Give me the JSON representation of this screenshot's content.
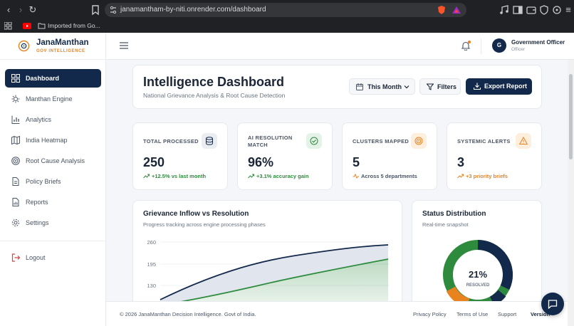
{
  "browser": {
    "url": "janamantham-by-niti.onrender.com/dashboard",
    "bookmark": "Imported from Go..."
  },
  "brand": {
    "name": "JanaManthan",
    "tagline": "GOV INTELLIGENCE"
  },
  "sidebar": {
    "items": [
      {
        "label": "Dashboard",
        "icon": "dashboard-icon",
        "active": true
      },
      {
        "label": "Manthan Engine",
        "icon": "engine-icon"
      },
      {
        "label": "Analytics",
        "icon": "analytics-icon"
      },
      {
        "label": "India Heatmap",
        "icon": "map-icon"
      },
      {
        "label": "Root Cause Analysis",
        "icon": "target-icon"
      },
      {
        "label": "Policy Briefs",
        "icon": "document-icon"
      },
      {
        "label": "Reports",
        "icon": "report-icon"
      },
      {
        "label": "Settings",
        "icon": "gear-icon"
      }
    ],
    "logout": "Logout"
  },
  "header": {
    "avatar_initial": "G",
    "user_name": "Government Officer",
    "user_role": "Officer"
  },
  "dashboard": {
    "title": "Intelligence Dashboard",
    "subtitle": "National Grievance Analysis & Root Cause Detection",
    "period": "This Month",
    "filters": "Filters",
    "export": "Export Report"
  },
  "stats": [
    {
      "label": "TOTAL PROCESSED",
      "value": "250",
      "trend": "+12.5% vs last month",
      "color": "#2e8b3e"
    },
    {
      "label_1": "AI RESOLUTION",
      "label_2": "MATCH",
      "value": "96%",
      "trend": "+3.1% accuracy gain",
      "color": "#2e8b3e"
    },
    {
      "label": "CLUSTERS MAPPED",
      "value": "5",
      "trend": "Across 5 departments",
      "color": "#4a5566"
    },
    {
      "label": "SYSTEMIC ALERTS",
      "value": "3",
      "trend": "+3 priority briefs",
      "color": "#e8831f"
    }
  ],
  "inflow_chart": {
    "title": "Grievance Inflow vs Resolution",
    "subtitle": "Progress tracking across engine processing phases",
    "yticks": [
      "260",
      "195",
      "130"
    ]
  },
  "status_chart": {
    "title": "Status Distribution",
    "subtitle": "Real-time snapshot",
    "center_value": "21%",
    "center_label": "RESOLVED"
  },
  "footer": {
    "copyright": "© 2026 JanaManthan Decision Intelligence. Govt of India.",
    "links": [
      "Privacy Policy",
      "Terms of Use",
      "Support",
      "Version"
    ]
  },
  "colors": {
    "navy": "#13294b",
    "orange": "#e8831f",
    "green": "#2e8b3e"
  }
}
